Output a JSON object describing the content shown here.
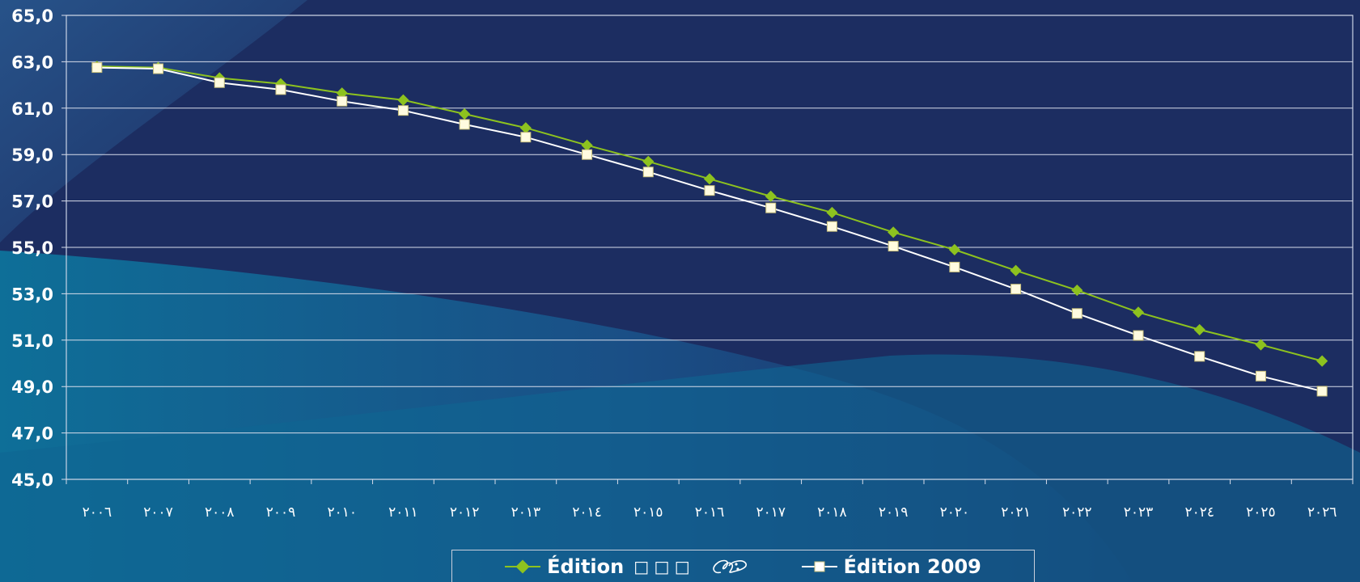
{
  "chart_data": {
    "type": "line",
    "categories": [
      "٢٠٠٦",
      "٢٠٠٧",
      "٢٠٠٨",
      "٢٠٠٩",
      "٢٠١٠",
      "٢٠١١",
      "٢٠١٢",
      "٢٠١٣",
      "٢٠١٤",
      "٢٠١٥",
      "٢٠١٦",
      "٢٠١٧",
      "٢٠١٨",
      "٢٠١٩",
      "٢٠٢٠",
      "٢٠٢١",
      "٢٠٢٢",
      "٢٠٢٣",
      "٢٠٢٤",
      "٢٠٢٥",
      "٢٠٢٦"
    ],
    "y_ticks": [
      "45,0",
      "47,0",
      "49,0",
      "51,0",
      "53,0",
      "55,0",
      "57,0",
      "59,0",
      "61,0",
      "63,0",
      "65,0"
    ],
    "ylim": [
      45,
      65
    ],
    "grid": true,
    "legend_position": "bottom",
    "series": [
      {
        "name": "Édition",
        "name_suffix": "□ □ □",
        "color": "#8dc21f",
        "marker": "diamond",
        "values": [
          62.8,
          62.75,
          62.3,
          62.05,
          61.65,
          61.35,
          60.75,
          60.15,
          59.4,
          58.7,
          57.95,
          57.2,
          56.5,
          55.65,
          54.9,
          54.0,
          53.15,
          52.2,
          51.45,
          50.8,
          50.1
        ]
      },
      {
        "name": "Édition 2009",
        "color": "#ffffff",
        "marker": "square",
        "values": [
          62.75,
          62.7,
          62.1,
          61.8,
          61.3,
          60.9,
          60.3,
          59.75,
          59.0,
          58.25,
          57.45,
          56.7,
          55.9,
          55.05,
          54.15,
          53.2,
          52.15,
          51.2,
          50.3,
          49.45,
          48.8
        ]
      }
    ]
  }
}
